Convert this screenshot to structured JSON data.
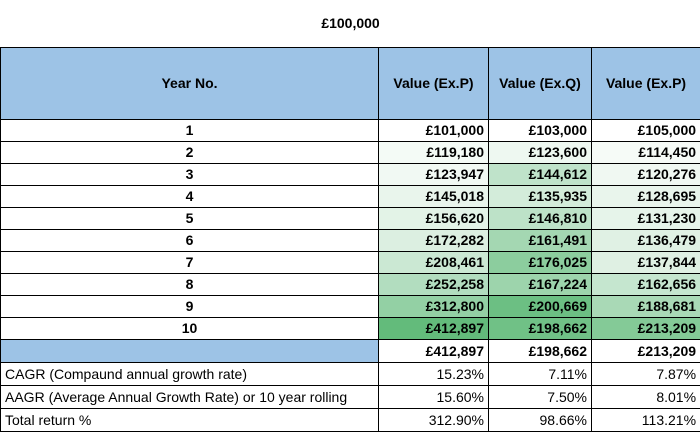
{
  "title": "£100,000",
  "headers": {
    "year": "Year No.",
    "col1": "Value (Ex.P)",
    "col2": "Value (Ex.Q)",
    "col3": "Value (Ex.P)"
  },
  "rows": [
    {
      "year": "1",
      "v1": "£101,000",
      "v2": "£103,000",
      "v3": "£105,000",
      "c1": "#ffffff",
      "c2": "#ffffff",
      "c3": "#ffffff"
    },
    {
      "year": "2",
      "v1": "£119,180",
      "v2": "£123,600",
      "v3": "£114,450",
      "c1": "#f4fbf6",
      "c2": "#eef8f1",
      "c3": "#f6fbf7"
    },
    {
      "year": "3",
      "v1": "£123,947",
      "v2": "£144,612",
      "v3": "£120,276",
      "c1": "#f1f9f3",
      "c2": "#bfe3ca",
      "c3": "#f0f8f2"
    },
    {
      "year": "4",
      "v1": "£145,018",
      "v2": "£135,935",
      "v3": "£128,695",
      "c1": "#e9f5ec",
      "c2": "#d3ecda",
      "c3": "#e9f5ec"
    },
    {
      "year": "5",
      "v1": "£156,620",
      "v2": "£146,810",
      "v3": "£131,230",
      "c1": "#e3f3e7",
      "c2": "#bde2c8",
      "c3": "#e6f4ea"
    },
    {
      "year": "6",
      "v1": "£172,282",
      "v2": "£161,491",
      "v3": "£136,479",
      "c1": "#dcefe1",
      "c2": "#a4d7b2",
      "c3": "#e0f1e4"
    },
    {
      "year": "7",
      "v1": "£208,461",
      "v2": "£176,025",
      "v3": "£137,844",
      "c1": "#cbe8d3",
      "c2": "#8ccd9e",
      "c3": "#dff0e3"
    },
    {
      "year": "8",
      "v1": "£252,258",
      "v2": "£167,224",
      "v3": "£162,656",
      "c1": "#b2ddbf",
      "c2": "#9dd4ac",
      "c3": "#c5e6cf"
    },
    {
      "year": "9",
      "v1": "£312,800",
      "v2": "£200,669",
      "v3": "£188,681",
      "c1": "#93d0a4",
      "c2": "#6cbf83",
      "c3": "#a9d9b6"
    },
    {
      "year": "10",
      "v1": "£412,897",
      "v2": "£198,662",
      "v3": "£213,209",
      "c1": "#63bb7b",
      "c2": "#70c186",
      "c3": "#84ca97"
    }
  ],
  "totals": {
    "v1": "£412,897",
    "v2": "£198,662",
    "v3": "£213,209"
  },
  "stats": [
    {
      "label": "CAGR (Compaund annual growth rate)",
      "v1": "15.23%",
      "v2": "7.11%",
      "v3": "7.87%"
    },
    {
      "label": "AAGR (Average Annual Growth Rate) or 10 year rolling",
      "v1": "15.60%",
      "v2": "7.50%",
      "v3": "8.01%"
    },
    {
      "label": "Total return %",
      "v1": "312.90%",
      "v2": "98.66%",
      "v3": "113.21%"
    }
  ]
}
